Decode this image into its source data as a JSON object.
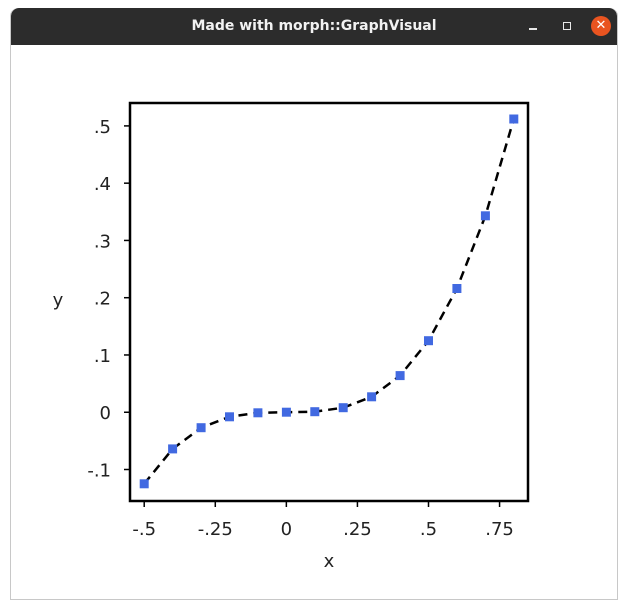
{
  "window": {
    "title": "Made with morph::GraphVisual",
    "buttons": {
      "minimize_icon": "minimize-icon",
      "maximize_icon": "maximize-icon",
      "close_icon": "close-icon"
    }
  },
  "chart_data": {
    "type": "line",
    "xlabel": "x",
    "ylabel": "y",
    "xlim": [
      -0.55,
      0.85
    ],
    "ylim": [
      -0.155,
      0.54
    ],
    "x_ticks": [
      {
        "value": -0.5,
        "label": "-.5"
      },
      {
        "value": -0.25,
        "label": "-.25"
      },
      {
        "value": 0,
        "label": "0"
      },
      {
        "value": 0.25,
        "label": ".25"
      },
      {
        "value": 0.5,
        "label": ".5"
      },
      {
        "value": 0.75,
        "label": ".75"
      }
    ],
    "y_ticks": [
      {
        "value": -0.1,
        "label": "-.1"
      },
      {
        "value": 0,
        "label": "0"
      },
      {
        "value": 0.1,
        "label": ".1"
      },
      {
        "value": 0.2,
        "label": ".2"
      },
      {
        "value": 0.3,
        "label": ".3"
      },
      {
        "value": 0.4,
        "label": ".4"
      },
      {
        "value": 0.5,
        "label": ".5"
      }
    ],
    "grid": false,
    "series": [
      {
        "marker": "square",
        "marker_color": "#4169e1",
        "line_color": "#000000",
        "line_style": "dashed",
        "x": [
          -0.5,
          -0.4,
          -0.3,
          -0.2,
          -0.1,
          0.0,
          0.1,
          0.2,
          0.3,
          0.4,
          0.5,
          0.6,
          0.7,
          0.8
        ],
        "y": [
          -0.125,
          -0.064,
          -0.027,
          -0.008,
          -0.001,
          0.0,
          0.001,
          0.008,
          0.027,
          0.064,
          0.125,
          0.216,
          0.343,
          0.512
        ]
      }
    ]
  }
}
